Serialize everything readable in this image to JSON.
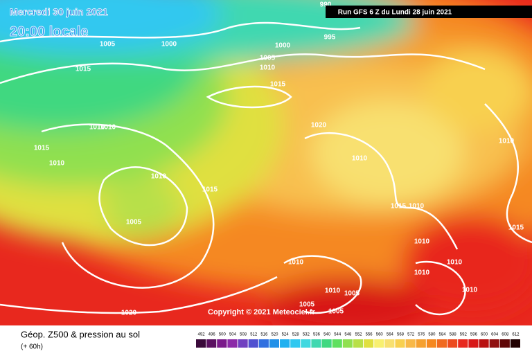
{
  "header": {
    "date": "Mercredi 30 juin 2021",
    "time": "20:00 locale",
    "run": "Run GFS 6 Z du Lundi 28 juin 2021"
  },
  "isobars": [
    "990",
    "995",
    "1000",
    "1000",
    "1005",
    "1015",
    "1005",
    "1010",
    "1015",
    "1010",
    "1010",
    "1020",
    "1015",
    "1010",
    "1010",
    "1010",
    "1015",
    "1005",
    "1015",
    "1010",
    "1010",
    "1015",
    "1010",
    "1010",
    "1010",
    "1010",
    "1010",
    "1010",
    "1005",
    "1005",
    "1005",
    "1020"
  ],
  "copyright": "Copyright © 2021 Meteociel.fr",
  "footer": {
    "title": "Géop. Z500 & pression au sol",
    "lead": "(+ 60h)"
  },
  "legend": [
    {
      "value": 492,
      "color": "#3a0a3a"
    },
    {
      "value": 496,
      "color": "#5a1060"
    },
    {
      "value": 500,
      "color": "#7a1a8a"
    },
    {
      "value": 504,
      "color": "#8c2aa8"
    },
    {
      "value": 508,
      "color": "#7040c0"
    },
    {
      "value": 512,
      "color": "#5050d0"
    },
    {
      "value": 516,
      "color": "#3070e0"
    },
    {
      "value": 520,
      "color": "#2090e8"
    },
    {
      "value": 524,
      "color": "#20b0f0"
    },
    {
      "value": 528,
      "color": "#30c8f0"
    },
    {
      "value": 532,
      "color": "#40d8e0"
    },
    {
      "value": 536,
      "color": "#40d8b0"
    },
    {
      "value": 540,
      "color": "#40d880"
    },
    {
      "value": 544,
      "color": "#60e060"
    },
    {
      "value": 548,
      "color": "#90e050"
    },
    {
      "value": 552,
      "color": "#b8e048"
    },
    {
      "value": 556,
      "color": "#e0e040"
    },
    {
      "value": 560,
      "color": "#f8f070"
    },
    {
      "value": 564,
      "color": "#f8e070"
    },
    {
      "value": 568,
      "color": "#f8d050"
    },
    {
      "value": 572,
      "color": "#f8b848"
    },
    {
      "value": 576,
      "color": "#f5a030"
    },
    {
      "value": 580,
      "color": "#f58820"
    },
    {
      "value": 584,
      "color": "#f06a20"
    },
    {
      "value": 588,
      "color": "#ec4a1e"
    },
    {
      "value": 592,
      "color": "#e8281e"
    },
    {
      "value": 596,
      "color": "#d81818"
    },
    {
      "value": 600,
      "color": "#b81010"
    },
    {
      "value": 604,
      "color": "#901010"
    },
    {
      "value": 608,
      "color": "#600808"
    },
    {
      "value": 612,
      "color": "#200000"
    }
  ]
}
